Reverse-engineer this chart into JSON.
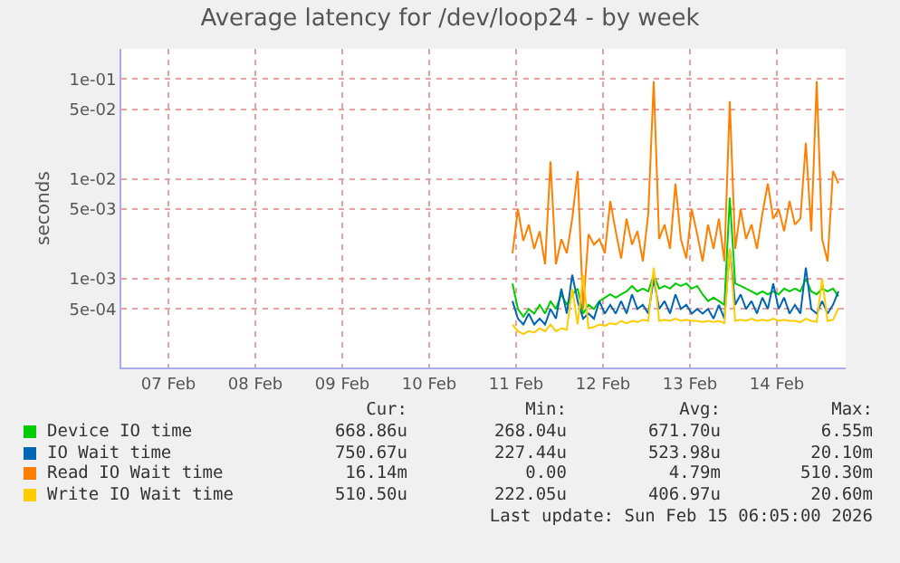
{
  "chart_data": {
    "type": "line",
    "title": "Average latency for /dev/loop24 - by week",
    "ylabel": "seconds",
    "xlim": [
      "2026-02-06T23:00",
      "2026-02-15T07:00"
    ],
    "xticks": [
      {
        "value": "2026-02-07T12:00",
        "label": "07 Feb"
      },
      {
        "value": "2026-02-08T12:00",
        "label": "08 Feb"
      },
      {
        "value": "2026-02-09T12:00",
        "label": "09 Feb"
      },
      {
        "value": "2026-02-10T12:00",
        "label": "10 Feb"
      },
      {
        "value": "2026-02-11T12:00",
        "label": "11 Feb"
      },
      {
        "value": "2026-02-12T12:00",
        "label": "12 Feb"
      },
      {
        "value": "2026-02-13T12:00",
        "label": "13 Feb"
      },
      {
        "value": "2026-02-14T12:00",
        "label": "14 Feb"
      }
    ],
    "ylim": [
      0.00013,
      0.2
    ],
    "log": true,
    "yticks": [
      {
        "value": 0.1,
        "label": "1e-01"
      },
      {
        "value": 0.05,
        "label": "5e-02"
      },
      {
        "value": 0.01,
        "label": "1e-02"
      },
      {
        "value": 0.005,
        "label": "5e-03"
      },
      {
        "value": 0.001,
        "label": "1e-03"
      },
      {
        "value": 0.0005,
        "label": "5e-04"
      }
    ],
    "grid": true,
    "legend": "bottom",
    "x": [
      "2026-02-11T11:00",
      "2026-02-11T12:30",
      "2026-02-11T14:00",
      "2026-02-11T15:30",
      "2026-02-11T17:00",
      "2026-02-11T18:30",
      "2026-02-11T20:00",
      "2026-02-11T21:30",
      "2026-02-11T23:00",
      "2026-02-12T00:30",
      "2026-02-12T02:00",
      "2026-02-12T03:30",
      "2026-02-12T05:00",
      "2026-02-12T06:30",
      "2026-02-12T08:00",
      "2026-02-12T09:30",
      "2026-02-12T11:00",
      "2026-02-12T12:30",
      "2026-02-12T14:00",
      "2026-02-12T15:30",
      "2026-02-12T17:00",
      "2026-02-12T18:30",
      "2026-02-12T20:00",
      "2026-02-12T21:30",
      "2026-02-12T23:00",
      "2026-02-13T00:30",
      "2026-02-13T02:00",
      "2026-02-13T03:30",
      "2026-02-13T05:00",
      "2026-02-13T06:30",
      "2026-02-13T08:00",
      "2026-02-13T09:30",
      "2026-02-13T11:00",
      "2026-02-13T12:30",
      "2026-02-13T14:00",
      "2026-02-13T15:30",
      "2026-02-13T17:00",
      "2026-02-13T18:30",
      "2026-02-13T20:00",
      "2026-02-13T21:30",
      "2026-02-13T23:00",
      "2026-02-14T00:30",
      "2026-02-14T02:00",
      "2026-02-14T03:30",
      "2026-02-14T05:00",
      "2026-02-14T06:30",
      "2026-02-14T08:00",
      "2026-02-14T09:30",
      "2026-02-14T11:00",
      "2026-02-14T12:30",
      "2026-02-14T14:00",
      "2026-02-14T15:30",
      "2026-02-14T17:00",
      "2026-02-14T18:30",
      "2026-02-14T20:00",
      "2026-02-14T21:30",
      "2026-02-14T23:00",
      "2026-02-15T00:30",
      "2026-02-15T02:00",
      "2026-02-15T03:30",
      "2026-02-15T05:00"
    ],
    "series": [
      {
        "name": "Device IO time",
        "color": "#00cc00",
        "values": [
          0.0009,
          0.0005,
          0.00042,
          0.0005,
          0.00045,
          0.00055,
          0.00045,
          0.0006,
          0.0005,
          0.0007,
          0.00055,
          0.0007,
          0.0008,
          0.00045,
          0.00055,
          0.0005,
          0.0006,
          0.00065,
          0.0007,
          0.00065,
          0.0007,
          0.00075,
          0.00085,
          0.00075,
          0.0008,
          0.00075,
          0.0011,
          0.0008,
          0.00085,
          0.0008,
          0.0009,
          0.00085,
          0.0009,
          0.0008,
          0.00085,
          0.0007,
          0.0006,
          0.00065,
          0.0006,
          0.00055,
          0.0065,
          0.0009,
          0.00085,
          0.0008,
          0.00075,
          0.0007,
          0.00075,
          0.0007,
          0.00075,
          0.0007,
          0.0008,
          0.00075,
          0.0008,
          0.00075,
          0.001,
          0.00075,
          0.0007,
          0.0008,
          0.00075,
          0.0008,
          0.00067
        ]
      },
      {
        "name": "IO Wait time",
        "color": "#0066b3",
        "values": [
          0.0006,
          0.0004,
          0.00035,
          0.00045,
          0.00035,
          0.0004,
          0.00035,
          0.0005,
          0.0004,
          0.0008,
          0.00045,
          0.0011,
          0.0006,
          0.0004,
          0.00045,
          0.0004,
          0.0006,
          0.00045,
          0.00055,
          0.00045,
          0.0006,
          0.00045,
          0.0007,
          0.0005,
          0.00055,
          0.00045,
          0.001,
          0.0005,
          0.0006,
          0.00045,
          0.0007,
          0.0005,
          0.00055,
          0.00045,
          0.0005,
          0.00045,
          0.0005,
          0.0004,
          0.00055,
          0.0004,
          0.002,
          0.00055,
          0.0007,
          0.0005,
          0.0006,
          0.00045,
          0.00065,
          0.0005,
          0.0009,
          0.0005,
          0.00065,
          0.00045,
          0.00055,
          0.00045,
          0.0013,
          0.0005,
          0.00045,
          0.0006,
          0.00045,
          0.00055,
          0.00075
        ]
      },
      {
        "name": "Read IO Wait time",
        "color": "#ff8000",
        "values": [
          0.0018,
          0.005,
          0.0024,
          0.0035,
          0.002,
          0.003,
          0.0014,
          0.015,
          0.0014,
          0.0025,
          0.0018,
          0.004,
          0.012,
          0.0005,
          0.0028,
          0.0022,
          0.0025,
          0.0018,
          0.006,
          0.003,
          0.0016,
          0.004,
          0.0022,
          0.003,
          0.0015,
          0.0045,
          0.095,
          0.0025,
          0.0035,
          0.002,
          0.009,
          0.0025,
          0.0016,
          0.005,
          0.0028,
          0.0015,
          0.0035,
          0.002,
          0.004,
          0.0015,
          0.06,
          0.002,
          0.005,
          0.0025,
          0.0035,
          0.002,
          0.0045,
          0.009,
          0.004,
          0.005,
          0.003,
          0.006,
          0.0035,
          0.004,
          0.023,
          0.003,
          0.095,
          0.0025,
          0.0015,
          0.012,
          0.009
        ]
      },
      {
        "name": "Write IO Wait time",
        "color": "#ffcc00",
        "values": [
          0.00035,
          0.0003,
          0.00028,
          0.0003,
          0.00029,
          0.00032,
          0.0003,
          0.00035,
          0.0003,
          0.00032,
          0.00031,
          0.0008,
          0.00035,
          0.0011,
          0.00032,
          0.00033,
          0.00035,
          0.00034,
          0.00036,
          0.00035,
          0.00038,
          0.00036,
          0.00038,
          0.00037,
          0.00039,
          0.00038,
          0.0013,
          0.00038,
          0.00039,
          0.00038,
          0.0004,
          0.00038,
          0.00039,
          0.00038,
          0.00038,
          0.00037,
          0.00038,
          0.00037,
          0.00038,
          0.00036,
          0.002,
          0.00038,
          0.00039,
          0.00038,
          0.0004,
          0.00038,
          0.00039,
          0.00038,
          0.0004,
          0.00038,
          0.00039,
          0.00038,
          0.00038,
          0.00037,
          0.0004,
          0.00038,
          0.00037,
          0.001,
          0.00038,
          0.00039,
          0.00051
        ]
      }
    ],
    "annotations": [
      "Cur:",
      "Min:",
      "Avg:",
      "Max:",
      "668.86u",
      "268.04u",
      "671.70u",
      "6.55m",
      "750.67u",
      "227.44u",
      "523.98u",
      "20.10m",
      "16.14m",
      "0.00",
      "4.79m",
      "510.30m",
      "510.50u",
      "222.05u",
      "406.97u",
      "20.60m",
      "Last update: Sun Feb 15 06:05:00 2026"
    ]
  }
}
